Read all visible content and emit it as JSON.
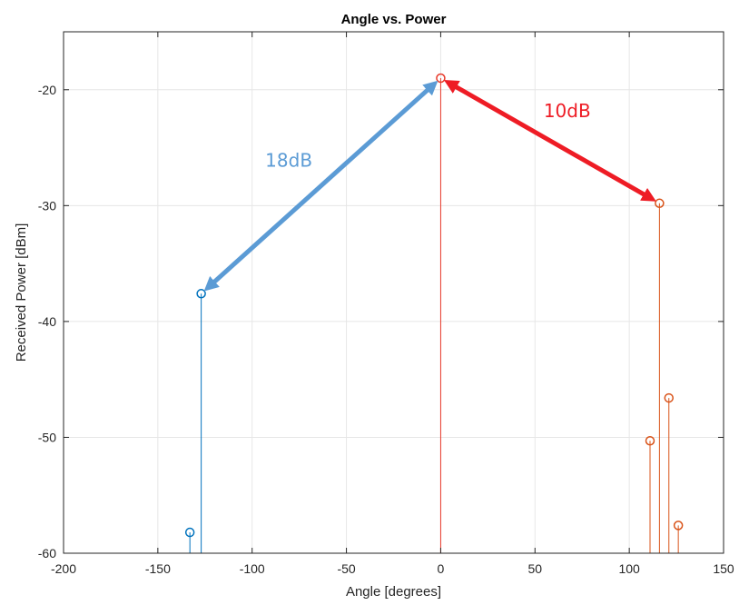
{
  "chart_data": {
    "type": "stem",
    "title": "Angle vs. Power",
    "xlabel": "Angle [degrees]",
    "ylabel": "Received Power [dBm]",
    "xlim": [
      -200,
      150
    ],
    "ylim": [
      -60,
      -15
    ],
    "xticks": [
      -200,
      -150,
      -100,
      -50,
      0,
      50,
      100,
      150
    ],
    "yticks": [
      -20,
      -30,
      -40,
      -50,
      -60
    ],
    "grid": true,
    "series": [
      {
        "color": "#0072BD",
        "points": [
          {
            "x": -133,
            "y": -58.2
          },
          {
            "x": -127,
            "y": -37.6
          }
        ]
      },
      {
        "color": "#D95319",
        "points": [
          {
            "x": 111,
            "y": -50.3
          },
          {
            "x": 116,
            "y": -29.8
          },
          {
            "x": 121,
            "y": -46.6
          },
          {
            "x": 126,
            "y": -57.6
          }
        ]
      },
      {
        "color": "#E8392A",
        "points": [
          {
            "x": 0,
            "y": -19.0
          }
        ]
      }
    ],
    "annotations": [
      {
        "text": "18dB",
        "color": "#5B9BD5",
        "from": {
          "x": -127,
          "y": -37.6
        },
        "to": {
          "x": 0,
          "y": -19.0
        }
      },
      {
        "text": "10dB",
        "color": "#EE1C25",
        "from": {
          "x": 0,
          "y": -19.0
        },
        "to": {
          "x": 116,
          "y": -29.8
        }
      }
    ]
  }
}
